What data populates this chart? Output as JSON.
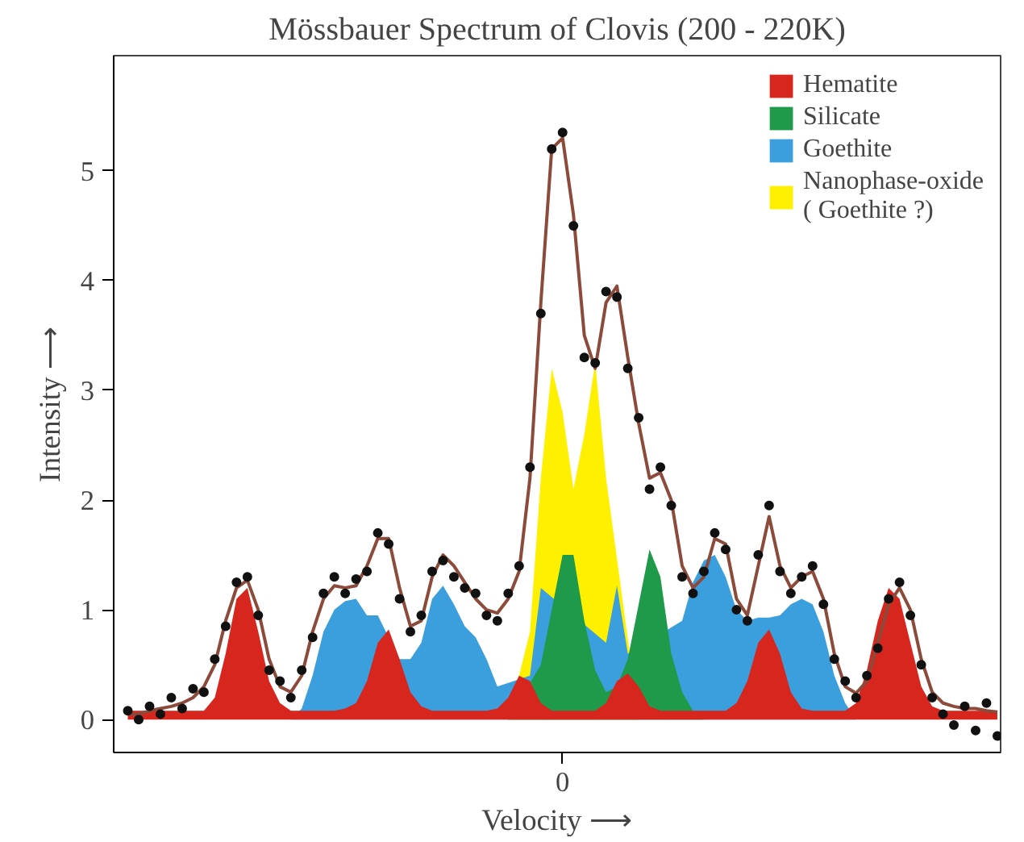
{
  "chart_data": {
    "type": "area",
    "title": "Mössbauer Spectrum of Clovis (200 - 220K)",
    "xlabel": "Velocity ⟶",
    "ylabel": "Intensity ⟶",
    "categories": [
      null,
      null,
      null,
      null,
      null,
      null,
      null,
      null,
      null,
      null,
      null,
      null,
      null,
      null,
      null,
      null,
      null,
      null,
      null,
      null,
      null,
      null,
      null,
      null,
      null,
      null,
      null,
      null,
      null,
      null,
      null,
      null,
      null,
      null,
      null,
      null,
      null,
      null,
      null,
      null,
      "0",
      null,
      null,
      null,
      null,
      null,
      null,
      null,
      null,
      null,
      null,
      null,
      null,
      null,
      null,
      null,
      null,
      null,
      null,
      null,
      null,
      null,
      null,
      null,
      null,
      null,
      null,
      null,
      null,
      null,
      null,
      null,
      null,
      null,
      null,
      null,
      null,
      null,
      null,
      null,
      null
    ],
    "ylim": [
      -0.3,
      6.05
    ],
    "yticks": [
      0,
      1,
      2,
      3,
      4,
      5
    ],
    "grid": false,
    "legend": "top right",
    "line_style": "solid",
    "series": [
      {
        "name": "Nanophase-oxide\n( Goethite ?)",
        "color": "#fff000",
        "values": [
          0,
          0,
          0,
          0,
          0,
          0,
          0,
          0,
          0,
          0,
          0,
          0,
          0,
          0,
          0,
          0,
          0,
          0,
          0,
          0,
          0,
          0,
          0,
          0,
          0,
          0,
          0,
          0,
          0,
          0,
          0,
          0,
          0,
          0,
          0,
          0,
          null,
          0.8,
          2.2,
          3.2,
          2.8,
          2.1,
          2.6,
          3.25,
          2.2,
          null,
          null,
          0,
          0,
          0,
          0,
          0,
          0,
          0,
          0,
          0,
          0,
          0,
          0,
          0,
          0,
          0,
          0,
          0,
          0,
          0,
          0,
          0,
          0,
          0,
          0,
          0,
          0,
          0,
          0,
          0,
          0,
          0,
          0,
          0,
          0
        ]
      },
      {
        "name": "Goethite",
        "color": "#3a9fdc",
        "values": [
          0,
          0,
          0,
          0,
          0,
          0,
          0,
          0,
          0,
          0,
          0,
          0,
          0,
          0,
          0,
          0,
          0.1,
          0.4,
          0.8,
          1.0,
          1.08,
          1.1,
          0.95,
          0.95,
          0.75,
          0.55,
          0.55,
          0.7,
          1.1,
          1.22,
          1.05,
          0.85,
          0.75,
          0.55,
          0.3,
          null,
          null,
          0.4,
          1.2,
          null,
          null,
          null,
          null,
          null,
          0.7,
          1.22,
          0.6,
          null,
          null,
          null,
          null,
          0.9,
          1.25,
          1.45,
          1.5,
          1.3,
          1.0,
          0.9,
          0.93,
          0.93,
          0.95,
          1.05,
          1.1,
          1.05,
          0.8,
          0.4,
          0.15,
          0,
          0,
          0,
          0,
          0,
          0,
          0,
          0,
          0,
          0,
          0,
          0,
          0,
          0
        ]
      },
      {
        "name": "Silicate",
        "color": "#1e9a4a",
        "values": [
          0,
          0,
          0,
          0,
          0,
          0,
          0,
          0,
          0,
          0,
          0,
          0,
          0,
          0,
          0,
          0,
          0,
          0,
          0,
          0,
          0,
          0,
          0,
          0,
          0,
          0,
          0,
          0,
          0,
          0,
          0,
          0,
          0,
          0,
          0,
          0,
          null,
          null,
          0.5,
          1.0,
          1.5,
          1.5,
          0.9,
          0.45,
          0.25,
          0.3,
          0.55,
          1.05,
          1.55,
          1.3,
          0.6,
          0.25,
          0.08,
          0,
          0,
          0,
          0,
          0,
          0,
          0,
          0,
          0,
          0,
          0,
          0,
          0,
          0,
          0,
          0,
          0,
          0,
          0,
          0,
          0,
          0,
          0,
          0,
          0,
          0,
          0,
          0
        ]
      },
      {
        "name": "Hematite",
        "color": "#d7261e",
        "values": [
          0.08,
          0.08,
          0.08,
          0.08,
          0.08,
          0.08,
          0.08,
          0.08,
          0.2,
          0.6,
          1.1,
          1.2,
          0.8,
          0.35,
          0.15,
          0.08,
          0.08,
          0.08,
          0.08,
          0.08,
          0.1,
          0.15,
          0.35,
          0.7,
          0.82,
          0.55,
          0.25,
          0.12,
          0.08,
          0.08,
          0.08,
          0.08,
          0.08,
          0.08,
          0.1,
          0.2,
          0.4,
          0.35,
          0.15,
          0.08,
          0.08,
          0.08,
          0.08,
          0.08,
          0.15,
          0.35,
          0.42,
          0.3,
          0.12,
          0.08,
          0.08,
          0.08,
          0.08,
          0.08,
          0.08,
          0.08,
          0.15,
          0.35,
          0.7,
          0.82,
          0.6,
          0.25,
          0.1,
          0.08,
          0.08,
          0.08,
          0.08,
          0.15,
          0.45,
          0.9,
          1.2,
          1.1,
          0.7,
          0.3,
          0.12,
          0.08,
          0.08,
          0.08,
          0.08,
          0.08,
          0.08
        ]
      },
      {
        "type": "line",
        "color": "#8b4a3a",
        "values": [
          0.05,
          0.05,
          0.08,
          0.1,
          0.12,
          0.15,
          0.2,
          0.3,
          0.5,
          0.9,
          1.2,
          1.27,
          1.0,
          0.55,
          0.3,
          0.25,
          0.4,
          0.8,
          1.1,
          1.22,
          1.2,
          1.22,
          1.4,
          1.65,
          1.65,
          1.2,
          0.85,
          0.9,
          1.3,
          1.5,
          1.4,
          1.25,
          1.1,
          1.0,
          0.97,
          1.1,
          1.35,
          2.2,
          3.8,
          5.2,
          5.3,
          4.6,
          3.5,
          3.2,
          3.8,
          3.95,
          3.3,
          2.7,
          2.2,
          2.25,
          2.0,
          1.4,
          1.2,
          1.3,
          1.65,
          1.6,
          1.1,
          0.95,
          1.4,
          1.85,
          1.4,
          1.2,
          1.3,
          1.35,
          1.1,
          0.6,
          0.3,
          0.24,
          0.35,
          0.7,
          1.05,
          1.2,
          1.0,
          0.55,
          0.25,
          0.15,
          0.12,
          0.1,
          0.1,
          0.08,
          0.07
        ]
      },
      {
        "type": "scatter",
        "marker": "circle",
        "color": "#111111",
        "values": [
          0.08,
          0.0,
          0.12,
          0.05,
          0.2,
          0.1,
          0.28,
          0.25,
          0.55,
          0.85,
          1.25,
          1.3,
          0.95,
          0.45,
          0.35,
          0.2,
          0.45,
          0.75,
          1.15,
          1.3,
          1.15,
          1.28,
          1.35,
          1.7,
          1.6,
          1.1,
          0.8,
          0.95,
          1.35,
          1.45,
          1.3,
          1.2,
          1.15,
          0.95,
          0.9,
          1.15,
          1.4,
          2.3,
          3.7,
          5.2,
          5.35,
          4.5,
          3.3,
          3.25,
          3.9,
          3.85,
          3.2,
          2.75,
          2.1,
          2.3,
          1.95,
          1.3,
          1.15,
          1.35,
          1.7,
          1.55,
          1.0,
          0.9,
          1.5,
          1.95,
          1.35,
          1.15,
          1.3,
          1.4,
          1.05,
          0.55,
          0.35,
          0.2,
          0.4,
          0.65,
          1.1,
          1.25,
          0.95,
          0.5,
          0.2,
          0.05,
          -0.05,
          0.12,
          -0.1,
          0.15,
          -0.15
        ]
      }
    ]
  }
}
